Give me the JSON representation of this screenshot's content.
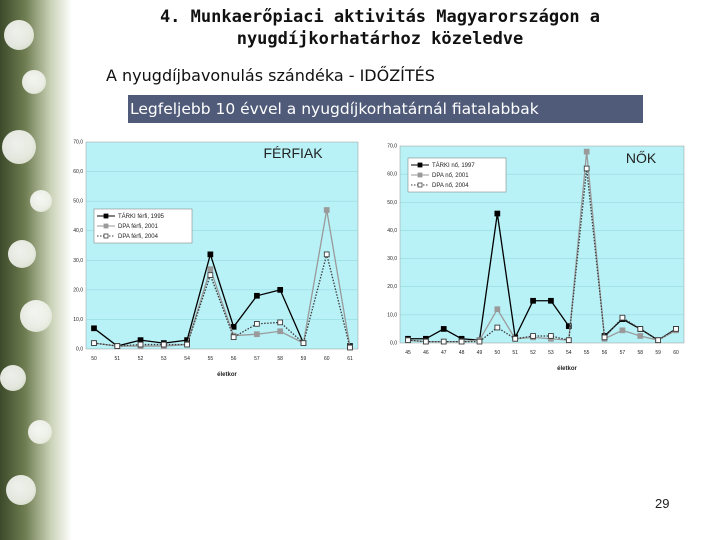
{
  "slide": {
    "title_line1": "4. Munkaerőpiaci aktivitás Magyarországon a",
    "title_line2": "nyugdíjkorhatárhoz közeledve",
    "subtitle": "A nyugdíjbavonulás szándéka - IDŐZÍTÉS",
    "banner": "Legfeljebb 10 évvel a nyugdíjkorhatárnál fiatalabbak",
    "page_number": "29"
  },
  "colors": {
    "plot_bg": "#b8f1f6",
    "banner_bg": "#4f5b78",
    "series_black": "#000000",
    "series_gray": "#9a9a9a",
    "series_dotted": "#3c3c3c"
  },
  "chart_data": [
    {
      "type": "line",
      "title": "FÉRFIAK",
      "xlabel": "életkor",
      "ylabel": "",
      "ylim": [
        0,
        70
      ],
      "yticks": [
        "0,0",
        "10,0",
        "20,0",
        "30,0",
        "40,0",
        "50,0",
        "60,0",
        "70,0"
      ],
      "categories": [
        "50",
        "51",
        "52",
        "53",
        "54",
        "55",
        "56",
        "57",
        "58",
        "59",
        "60",
        "61"
      ],
      "legend_position": "upper-left",
      "grid": true,
      "series": [
        {
          "name": "TÁRKI férfi, 1995",
          "style": "solid-black",
          "values": [
            7.0,
            1.0,
            3.0,
            2.0,
            3.0,
            32.0,
            7.5,
            18.0,
            20.0,
            2.0,
            null,
            1.0
          ]
        },
        {
          "name": "DPA férfi, 2001",
          "style": "solid-gray",
          "values": [
            2.0,
            1.0,
            1.0,
            1.0,
            1.5,
            27.0,
            4.5,
            5.0,
            6.0,
            2.0,
            47.0,
            0.5
          ]
        },
        {
          "name": "DPA férfi, 2004",
          "style": "dotted-hollow",
          "values": [
            2.0,
            1.0,
            1.5,
            1.5,
            1.5,
            25.0,
            4.0,
            8.5,
            9.0,
            2.0,
            32.0,
            0.5
          ]
        }
      ]
    },
    {
      "type": "line",
      "title": "NŐK",
      "xlabel": "életkor",
      "ylabel": "",
      "ylim": [
        0,
        70
      ],
      "yticks": [
        "0,0",
        "10,0",
        "20,0",
        "30,0",
        "40,0",
        "50,0",
        "60,0",
        "70,0"
      ],
      "categories": [
        "45",
        "46",
        "47",
        "48",
        "49",
        "50",
        "51",
        "52",
        "53",
        "54",
        "55",
        "56",
        "57",
        "58",
        "59",
        "60"
      ],
      "legend_position": "upper-left",
      "grid": true,
      "series": [
        {
          "name": "TÁRKI nő, 1997",
          "style": "solid-black",
          "values": [
            1.5,
            1.5,
            5.0,
            1.5,
            1.0,
            46.0,
            2.0,
            15.0,
            15.0,
            6.0,
            null,
            2.5,
            8.5,
            5.0,
            1.0,
            5.0
          ]
        },
        {
          "name": "DPA nő, 2001",
          "style": "solid-gray",
          "values": [
            1.0,
            0.5,
            0.5,
            0.5,
            1.0,
            12.0,
            1.5,
            2.0,
            1.5,
            1.0,
            68.0,
            1.5,
            4.5,
            2.5,
            1.0,
            4.5
          ]
        },
        {
          "name": "DPA nő, 2004",
          "style": "dotted-hollow",
          "values": [
            1.0,
            0.5,
            0.5,
            0.5,
            0.5,
            5.5,
            1.5,
            2.5,
            2.5,
            1.0,
            62.0,
            2.0,
            9.0,
            5.0,
            1.0,
            5.0
          ]
        }
      ]
    }
  ]
}
